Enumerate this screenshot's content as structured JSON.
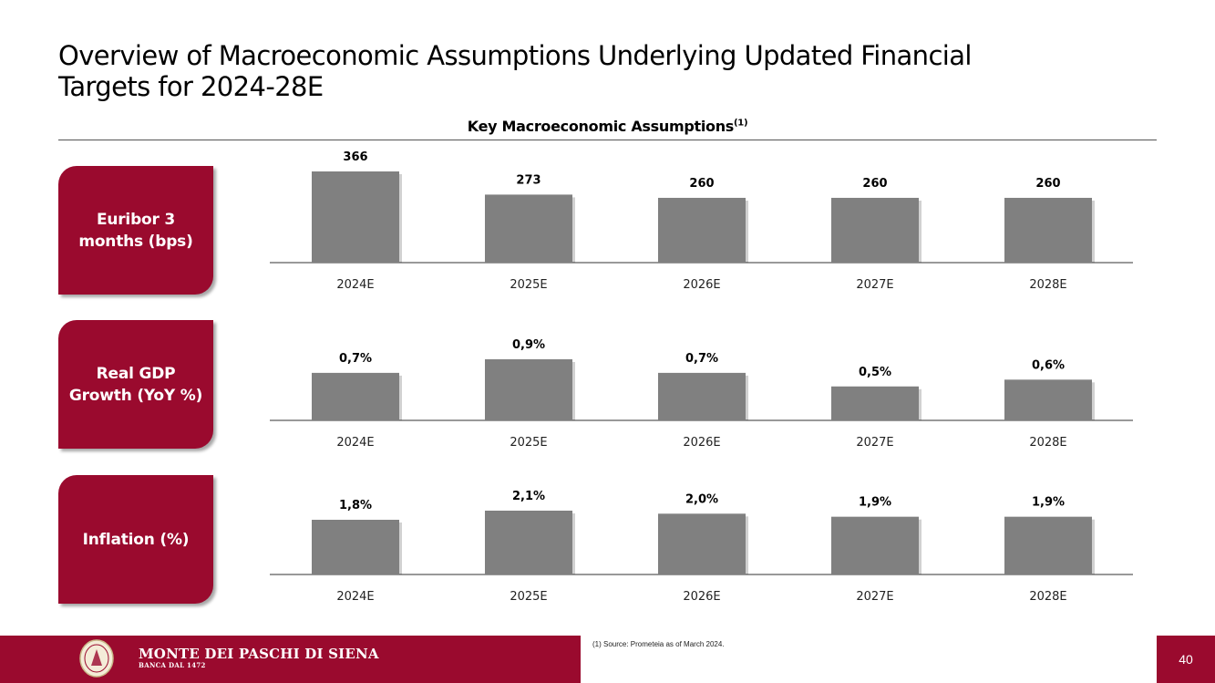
{
  "slide": {
    "title_line1": "Overview of Macroeconomic Assumptions Underlying Updated Financial",
    "title_line2": "Targets for 2024-28E",
    "subtitle": "Key Macroeconomic Assumptions",
    "subtitle_note": "(1)",
    "source": "(1) Source: Prometeia as of March 2024.",
    "page_number": "40",
    "brand_name": "MONTE DEI PASCHI DI SIENA",
    "brand_sub": "BANCA DAL 1472"
  },
  "colors": {
    "accent": "#9a0a2e",
    "bar": "#808080"
  },
  "chart_data": [
    {
      "type": "bar",
      "label": "Euribor 3 months (bps)",
      "categories": [
        "2024E",
        "2025E",
        "2026E",
        "2027E",
        "2028E"
      ],
      "values": [
        366,
        273,
        260,
        260,
        260
      ],
      "data_labels": [
        "366",
        "273",
        "260",
        "260",
        "260"
      ],
      "ylim": [
        0,
        400
      ]
    },
    {
      "type": "bar",
      "label": "Real GDP Growth (YoY %)",
      "categories": [
        "2024E",
        "2025E",
        "2026E",
        "2027E",
        "2028E"
      ],
      "values": [
        0.7,
        0.9,
        0.7,
        0.5,
        0.6
      ],
      "data_labels": [
        "0,7%",
        "0,9%",
        "0,7%",
        "0,5%",
        "0,6%"
      ],
      "ylim": [
        0,
        1.0
      ]
    },
    {
      "type": "bar",
      "label": "Inflation (%)",
      "categories": [
        "2024E",
        "2025E",
        "2026E",
        "2027E",
        "2028E"
      ],
      "values": [
        1.8,
        2.1,
        2.0,
        1.9,
        1.9
      ],
      "data_labels": [
        "1,8%",
        "2,1%",
        "2,0%",
        "1,9%",
        "1,9%"
      ],
      "ylim": [
        0,
        2.5
      ]
    }
  ]
}
